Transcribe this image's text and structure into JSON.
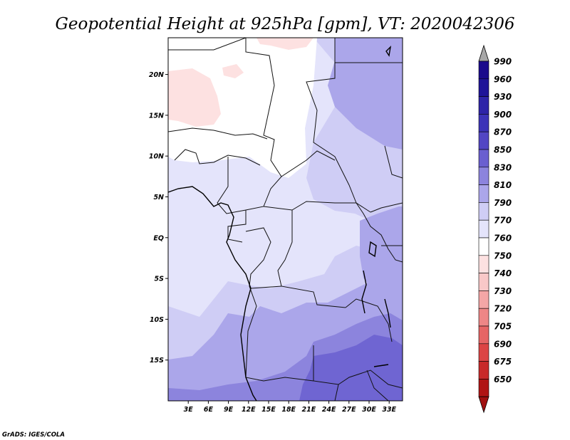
{
  "title": "Geopotential Height at 925hPa [gpm], VT: 2020042306",
  "credit": "GrADS: IGES/COLA",
  "map": {
    "lon_range": [
      0,
      35
    ],
    "lat_range": [
      -20,
      24.5
    ],
    "x_ticks": [
      {
        "lon": 3,
        "label": "3E"
      },
      {
        "lon": 6,
        "label": "6E"
      },
      {
        "lon": 9,
        "label": "9E"
      },
      {
        "lon": 12,
        "label": "12E"
      },
      {
        "lon": 15,
        "label": "15E"
      },
      {
        "lon": 18,
        "label": "18E"
      },
      {
        "lon": 21,
        "label": "21E"
      },
      {
        "lon": 24,
        "label": "24E"
      },
      {
        "lon": 27,
        "label": "27E"
      },
      {
        "lon": 30,
        "label": "30E"
      },
      {
        "lon": 33,
        "label": "33E"
      }
    ],
    "y_ticks": [
      {
        "lat": 20,
        "label": "20N"
      },
      {
        "lat": 15,
        "label": "15N"
      },
      {
        "lat": 10,
        "label": "10N"
      },
      {
        "lat": 5,
        "label": "5N"
      },
      {
        "lat": 0,
        "label": "EQ"
      },
      {
        "lat": -5,
        "label": "5S"
      },
      {
        "lat": -10,
        "label": "10S"
      },
      {
        "lat": -15,
        "label": "15S"
      }
    ]
  },
  "colorbar": {
    "levels": [
      {
        "label": "990",
        "color": "#1a0a8c"
      },
      {
        "label": "960",
        "color": "#1f1499"
      },
      {
        "label": "930",
        "color": "#2e24a8"
      },
      {
        "label": "900",
        "color": "#3c33b8"
      },
      {
        "label": "870",
        "color": "#5246c4"
      },
      {
        "label": "850",
        "color": "#6a5fd0"
      },
      {
        "label": "830",
        "color": "#8c84dd"
      },
      {
        "label": "810",
        "color": "#aba6ea"
      },
      {
        "label": "790",
        "color": "#cfcdf5"
      },
      {
        "label": "770",
        "color": "#e4e4fb"
      },
      {
        "label": "760",
        "color": "#ffffff"
      },
      {
        "label": "750",
        "color": "#fde1e1"
      },
      {
        "label": "740",
        "color": "#f9c8c8"
      },
      {
        "label": "730",
        "color": "#f4a6a6"
      },
      {
        "label": "720",
        "color": "#ee8686"
      },
      {
        "label": "705",
        "color": "#e66565"
      },
      {
        "label": "690",
        "color": "#dc4444"
      },
      {
        "label": "675",
        "color": "#c82a2a"
      },
      {
        "label": "650",
        "color": "#b01414"
      }
    ],
    "top_cap_color": "#a8a8a8",
    "bottom_cap_color": "#a01010"
  }
}
